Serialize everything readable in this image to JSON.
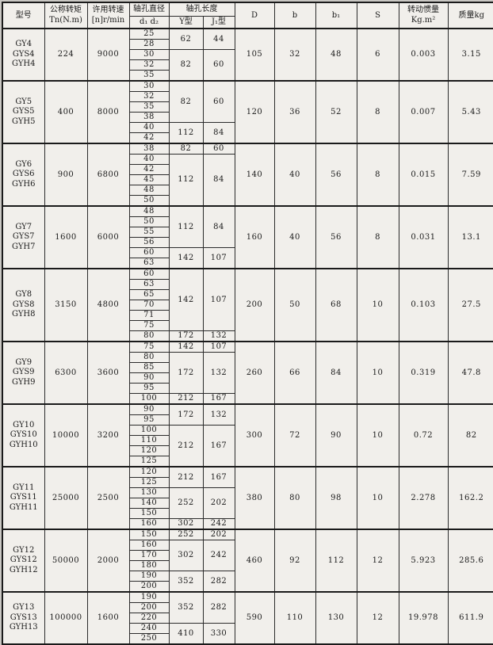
{
  "table": {
    "header": {
      "model": "型号",
      "torque_line1": "公称转矩",
      "torque_line2": "Tn(N.m)",
      "speed_line1": "许用转速",
      "speed_line2": "[n]r/min",
      "bore_line1": "轴孔直径",
      "bore_line2": "d₁ d₂",
      "length": "轴孔长度",
      "length_y": "Y型",
      "length_j": "J₁型",
      "D": "D",
      "b": "b",
      "b1": "b₁",
      "S": "S",
      "inertia_line1": "转动惯量",
      "inertia_line2": "Kg.m²",
      "mass": "质量kg"
    },
    "blocks": [
      {
        "models": [
          "GY4",
          "GYS4",
          "GYH4"
        ],
        "torque": "224",
        "speed": "9000",
        "groups": [
          {
            "bores": [
              "25",
              "28"
            ],
            "y": "62",
            "j": "44"
          },
          {
            "bores": [
              "30",
              "32",
              "35"
            ],
            "y": "82",
            "j": "60"
          }
        ],
        "D": "105",
        "b": "32",
        "b1": "48",
        "S": "6",
        "inertia": "0.003",
        "mass": "3.15"
      },
      {
        "models": [
          "GY5",
          "GYS5",
          "GYH5"
        ],
        "torque": "400",
        "speed": "8000",
        "groups": [
          {
            "bores": [
              "30",
              "32",
              "35",
              "38"
            ],
            "y": "82",
            "j": "60"
          },
          {
            "bores": [
              "40",
              "42"
            ],
            "y": "112",
            "j": "84"
          }
        ],
        "D": "120",
        "b": "36",
        "b1": "52",
        "S": "8",
        "inertia": "0.007",
        "mass": "5.43"
      },
      {
        "models": [
          "GY6",
          "GYS6",
          "GYH6"
        ],
        "torque": "900",
        "speed": "6800",
        "groups": [
          {
            "bores": [
              "38"
            ],
            "y": "82",
            "j": "60"
          },
          {
            "bores": [
              "40",
              "42",
              "45",
              "48",
              "50"
            ],
            "y": "112",
            "j": "84"
          }
        ],
        "D": "140",
        "b": "40",
        "b1": "56",
        "S": "8",
        "inertia": "0.015",
        "mass": "7.59"
      },
      {
        "models": [
          "GY7",
          "GYS7",
          "GYH7"
        ],
        "torque": "1600",
        "speed": "6000",
        "groups": [
          {
            "bores": [
              "48",
              "50",
              "55",
              "56"
            ],
            "y": "112",
            "j": "84"
          },
          {
            "bores": [
              "60",
              "63"
            ],
            "y": "142",
            "j": "107"
          }
        ],
        "D": "160",
        "b": "40",
        "b1": "56",
        "S": "8",
        "inertia": "0.031",
        "mass": "13.1"
      },
      {
        "models": [
          "GY8",
          "GYS8",
          "GYH8"
        ],
        "torque": "3150",
        "speed": "4800",
        "groups": [
          {
            "bores": [
              "60",
              "63",
              "65",
              "70",
              "71",
              "75"
            ],
            "y": "142",
            "j": "107"
          },
          {
            "bores": [
              "80"
            ],
            "y": "172",
            "j": "132"
          }
        ],
        "D": "200",
        "b": "50",
        "b1": "68",
        "S": "10",
        "inertia": "0.103",
        "mass": "27.5"
      },
      {
        "models": [
          "GY9",
          "GYS9",
          "GYH9"
        ],
        "torque": "6300",
        "speed": "3600",
        "groups": [
          {
            "bores": [
              "75"
            ],
            "y": "142",
            "j": "107"
          },
          {
            "bores": [
              "80",
              "85",
              "90",
              "95"
            ],
            "y": "172",
            "j": "132"
          },
          {
            "bores": [
              "100"
            ],
            "y": "212",
            "j": "167"
          }
        ],
        "D": "260",
        "b": "66",
        "b1": "84",
        "S": "10",
        "inertia": "0.319",
        "mass": "47.8"
      },
      {
        "models": [
          "GY10",
          "GYS10",
          "GYH10"
        ],
        "torque": "10000",
        "speed": "3200",
        "groups": [
          {
            "bores": [
              "90",
              "95"
            ],
            "y": "172",
            "j": "132"
          },
          {
            "bores": [
              "100",
              "110",
              "120",
              "125"
            ],
            "y": "212",
            "j": "167"
          }
        ],
        "D": "300",
        "b": "72",
        "b1": "90",
        "S": "10",
        "inertia": "0.72",
        "mass": "82"
      },
      {
        "models": [
          "GY11",
          "GYS11",
          "GYH11"
        ],
        "torque": "25000",
        "speed": "2500",
        "groups": [
          {
            "bores": [
              "120",
              "125"
            ],
            "y": "212",
            "j": "167"
          },
          {
            "bores": [
              "130",
              "140",
              "150"
            ],
            "y": "252",
            "j": "202"
          },
          {
            "bores": [
              "160"
            ],
            "y": "302",
            "j": "242"
          }
        ],
        "D": "380",
        "b": "80",
        "b1": "98",
        "S": "10",
        "inertia": "2.278",
        "mass": "162.2"
      },
      {
        "models": [
          "GY12",
          "GYS12",
          "GYH12"
        ],
        "torque": "50000",
        "speed": "2000",
        "groups": [
          {
            "bores": [
              "150"
            ],
            "y": "252",
            "j": "202"
          },
          {
            "bores": [
              "160",
              "170",
              "180"
            ],
            "y": "302",
            "j": "242"
          },
          {
            "bores": [
              "190",
              "200"
            ],
            "y": "352",
            "j": "282"
          }
        ],
        "D": "460",
        "b": "92",
        "b1": "112",
        "S": "12",
        "inertia": "5.923",
        "mass": "285.6"
      },
      {
        "models": [
          "GY13",
          "GYS13",
          "GYH13"
        ],
        "torque": "100000",
        "speed": "1600",
        "groups": [
          {
            "bores": [
              "190",
              "200",
              "220"
            ],
            "y": "352",
            "j": "282"
          },
          {
            "bores": [
              "240",
              "250"
            ],
            "y": "410",
            "j": "330"
          }
        ],
        "D": "590",
        "b": "110",
        "b1": "130",
        "S": "12",
        "inertia": "19.978",
        "mass": "611.9"
      }
    ]
  }
}
